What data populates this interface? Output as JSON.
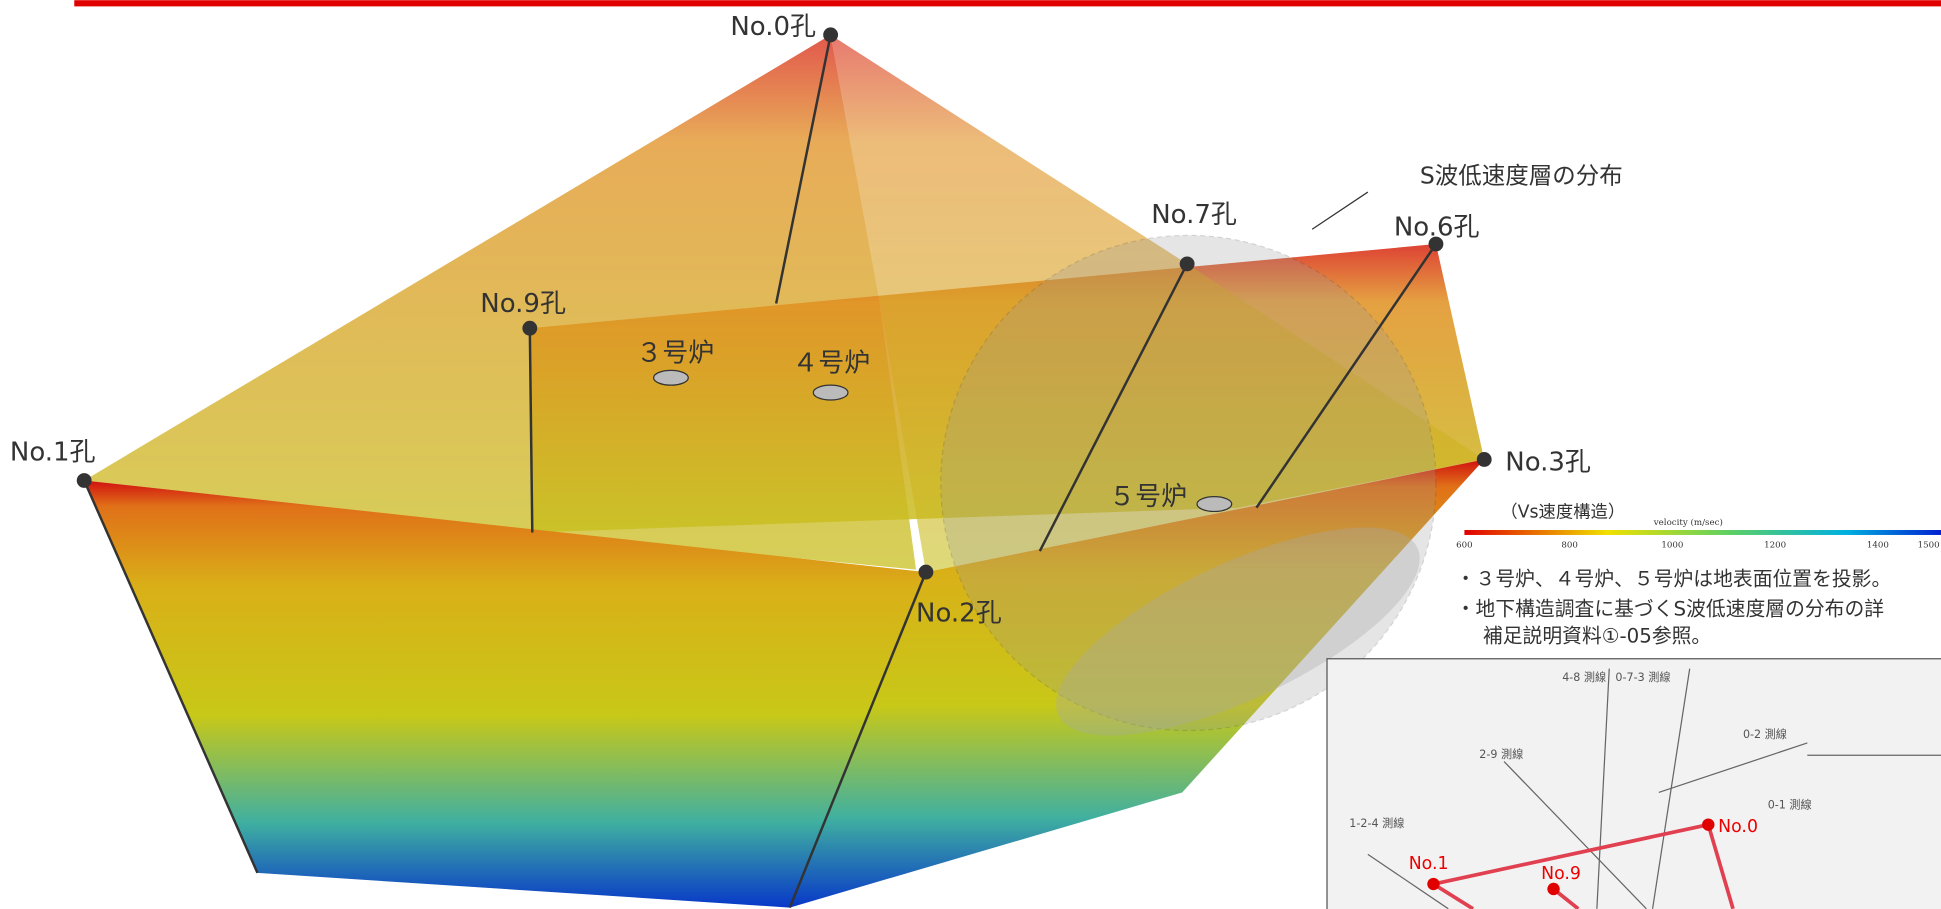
{
  "boreholes": [
    {
      "label": "No.0孔"
    },
    {
      "label": "No.1孔"
    },
    {
      "label": "No.9孔"
    },
    {
      "label": "No.7孔"
    },
    {
      "label": "No.6孔"
    },
    {
      "label": "No.3孔"
    },
    {
      "label": "No.2孔"
    }
  ],
  "reactors": [
    {
      "label": "３号炉"
    },
    {
      "label": "４号炉"
    },
    {
      "label": "５号炉"
    }
  ],
  "annotation": "S波低速度層の分布",
  "legend": {
    "title": "（Vs速度構造）",
    "axis_label": "velocity (m/sec)",
    "ticks": [
      "600",
      "800",
      "1000",
      "1200",
      "1400",
      "1500"
    ]
  },
  "notes": [
    "・３号炉、４号炉、５号炉は地表面位置を投影。",
    "・地下構造調査に基づくS波低速度層の分布の詳",
    "補足説明資料①-05参照。"
  ],
  "map": {
    "labels": [
      "4-8 測線",
      "0-7-3 測線",
      "2-9 測線",
      "1-2-4 測線",
      "0-2 測線",
      "0-1 測線",
      "No.0",
      "No.1",
      "No.9"
    ]
  }
}
